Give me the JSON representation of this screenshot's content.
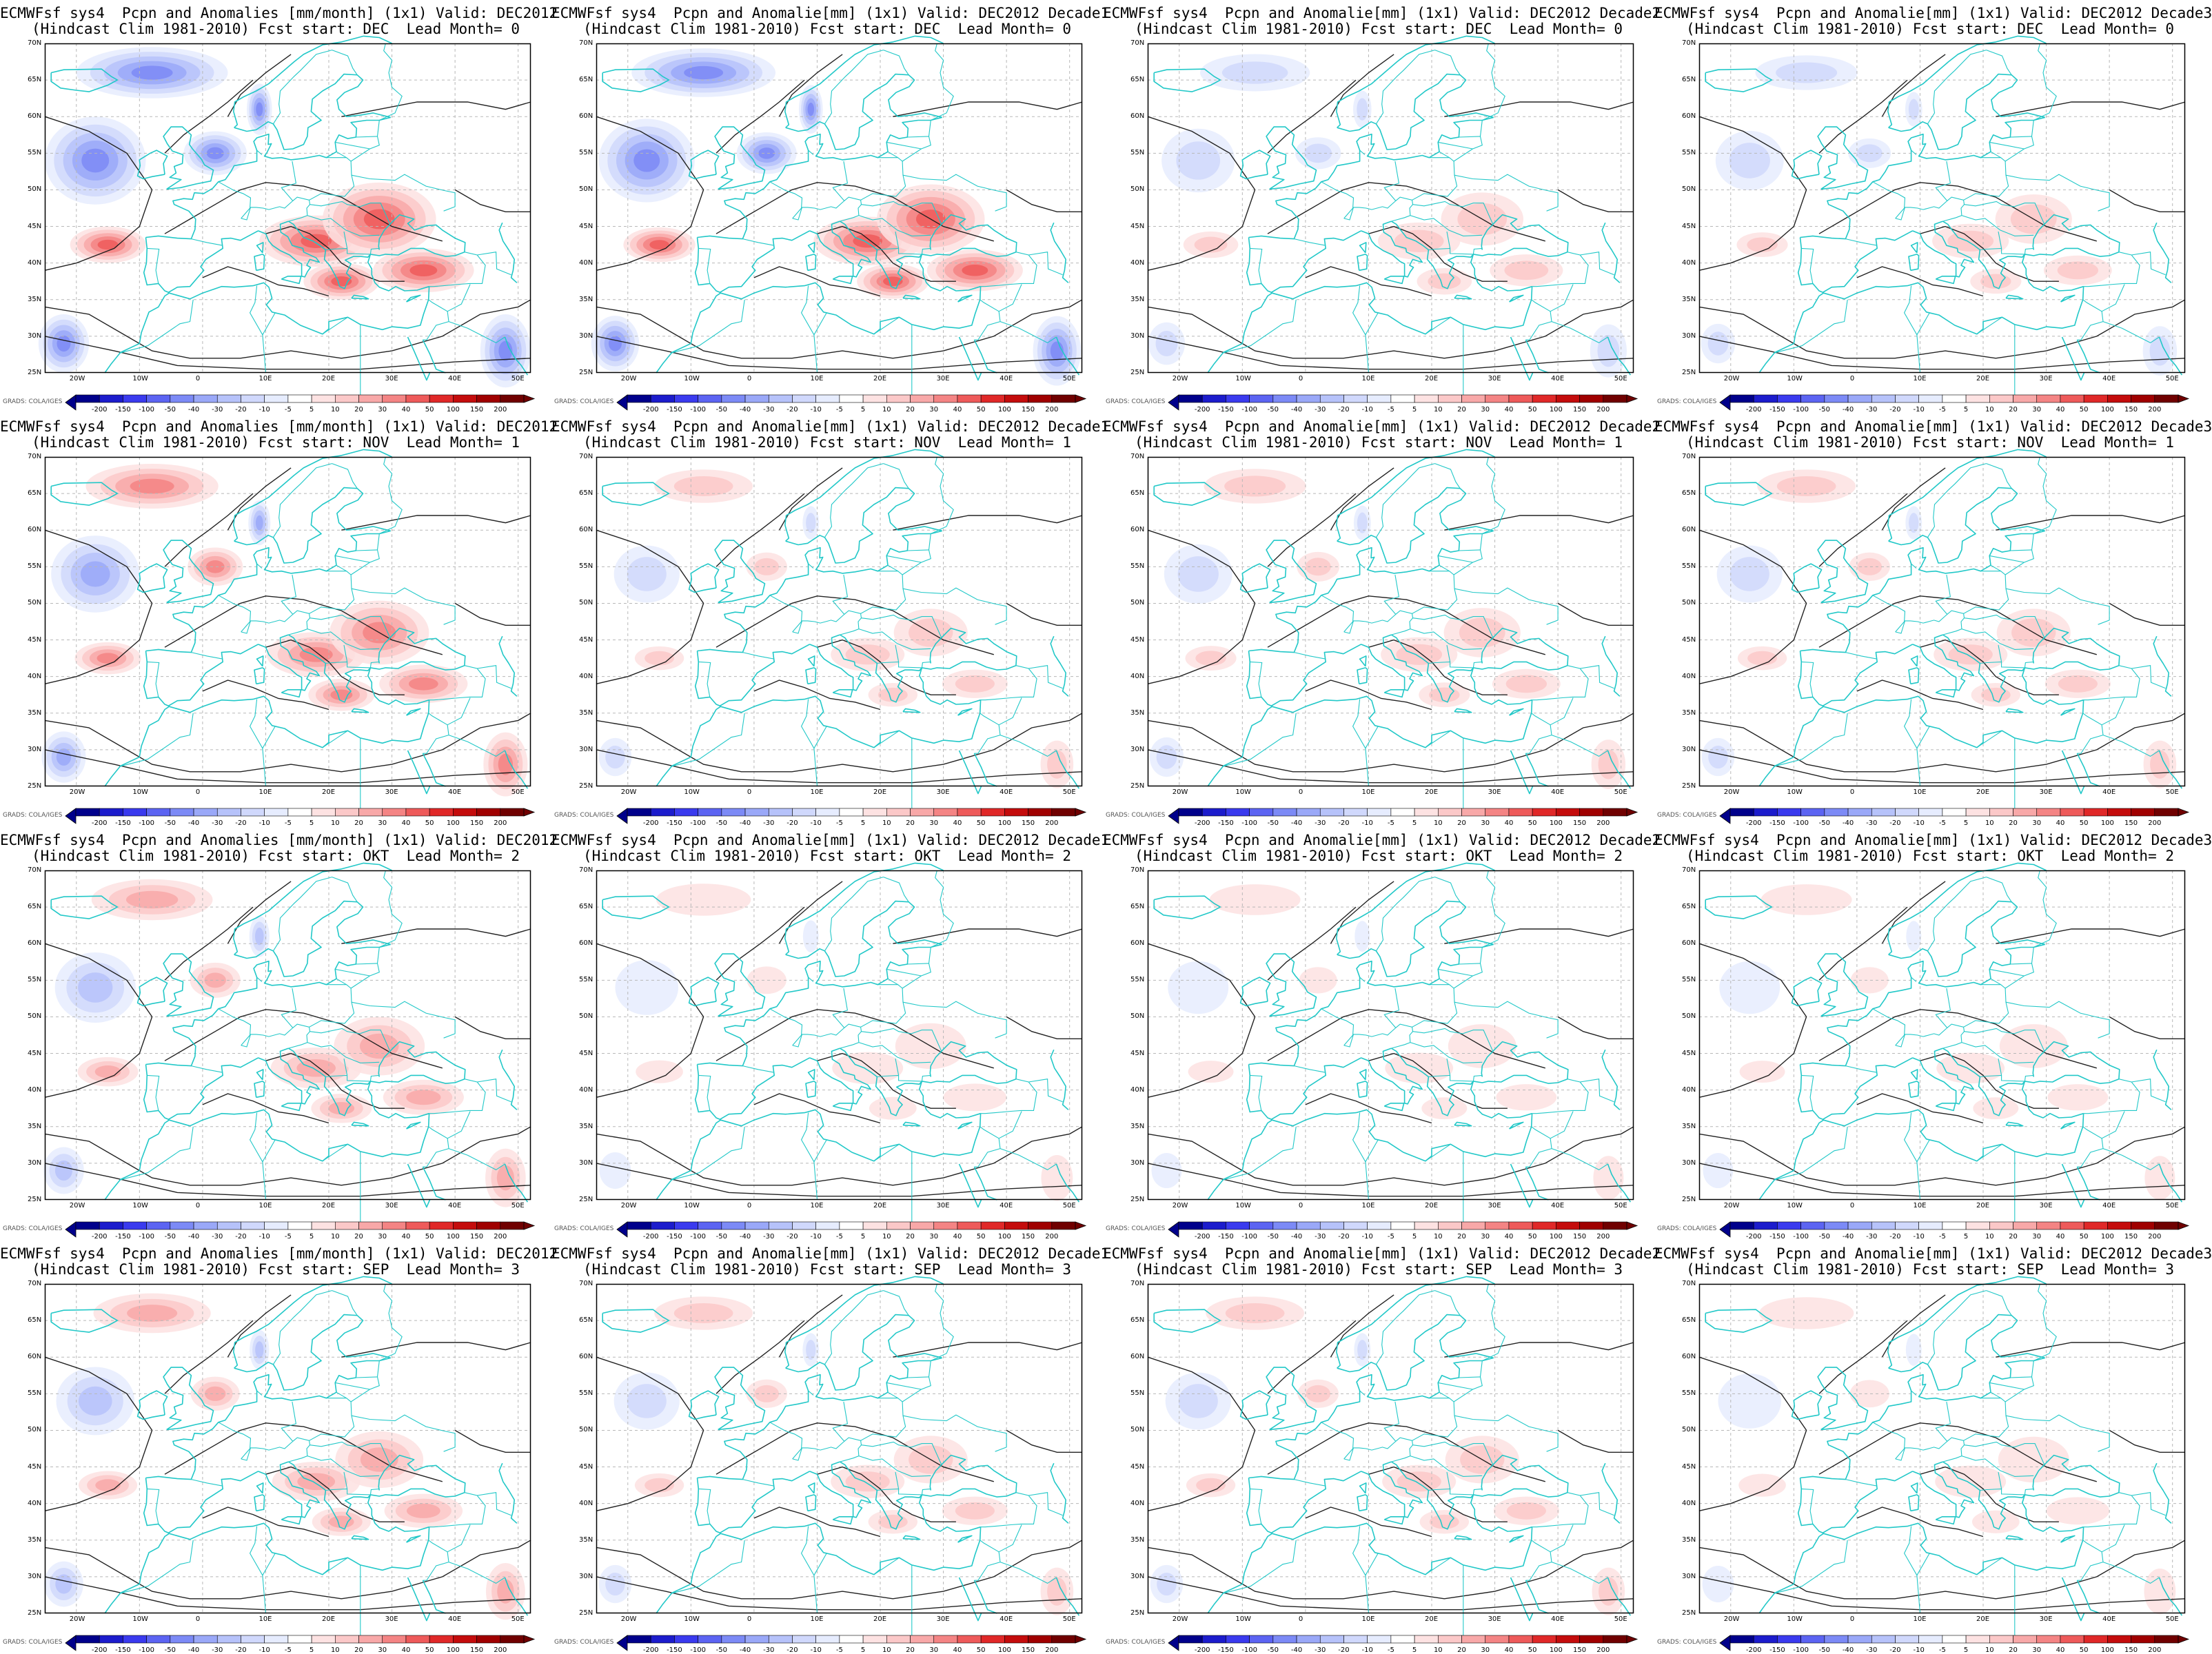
{
  "map": {
    "lon_range": [
      -25,
      52
    ],
    "lat_range": [
      25,
      70
    ],
    "lat_ticks": [
      "70N",
      "65N",
      "60N",
      "55N",
      "50N",
      "45N",
      "40N",
      "35N",
      "30N",
      "25N"
    ],
    "lon_ticks": [
      "20W",
      "10W",
      "0",
      "10E",
      "20E",
      "30E",
      "40E",
      "50E"
    ],
    "colorbar_ticks": [
      "-200",
      "-150",
      "-100",
      "-50",
      "-40",
      "-30",
      "-20",
      "-10",
      "-5",
      "5",
      "10",
      "20",
      "30",
      "40",
      "50",
      "100",
      "150",
      "200"
    ],
    "colorbar_colors": [
      "#00008b",
      "#1c1ccc",
      "#3a3aee",
      "#5c64f2",
      "#7c8af6",
      "#9aa8f8",
      "#b6c2fa",
      "#d0d8fc",
      "#e6ecfe",
      "#ffffff",
      "#fde2e2",
      "#fbc8c8",
      "#f8a8a8",
      "#f48484",
      "#ee5a5a",
      "#e02828",
      "#c40c0c",
      "#a00000",
      "#700000"
    ],
    "credit": "GRADS: COLA/IGES",
    "coast_color": "#22c8c8"
  },
  "rows": [
    {
      "start": "DEC",
      "lead": "0",
      "panels": [
        {
          "title1": "ECMWFsf sys4  Pcpn and Anomalies [mm/month] (1x1) Valid: DEC2012",
          "title2": "(Hindcast Clim 1981-2010) Fcst start: DEC  Lead Month= 0",
          "intensity": 1.0,
          "sign": -1
        },
        {
          "title1": "ECMWFsf sys4  Pcpn and Anomalie[mm] (1x1) Valid: DEC2012 Decade1",
          "title2": "(Hindcast Clim 1981-2010) Fcst start: DEC  Lead Month= 0",
          "intensity": 0.9,
          "sign": -1
        },
        {
          "title1": "ECMWFsf sys4  Pcpn and Anomalie[mm] (1x1) Valid: DEC2012 Decade2",
          "title2": "(Hindcast Clim 1981-2010) Fcst start: DEC  Lead Month= 0",
          "intensity": 0.45,
          "sign": -1
        },
        {
          "title1": "ECMWFsf sys4  Pcpn and Anomalie[mm] (1x1) Valid: DEC2012 Decade3",
          "title2": "(Hindcast Clim 1981-2010) Fcst start: DEC  Lead Month= 0",
          "intensity": 0.35,
          "sign": -1
        }
      ]
    },
    {
      "start": "NOV",
      "lead": "1",
      "panels": [
        {
          "title1": "ECMWFsf sys4  Pcpn and Anomalies [mm/month] (1x1) Valid: DEC2012",
          "title2": "(Hindcast Clim 1981-2010) Fcst start: NOV  Lead Month= 1",
          "intensity": 0.75,
          "sign": 1
        },
        {
          "title1": "ECMWFsf sys4  Pcpn and Anomalie[mm] (1x1) Valid: DEC2012 Decade1",
          "title2": "(Hindcast Clim 1981-2010) Fcst start: NOV  Lead Month= 1",
          "intensity": 0.3,
          "sign": 1
        },
        {
          "title1": "ECMWFsf sys4  Pcpn and Anomalie[mm] (1x1) Valid: DEC2012 Decade2",
          "title2": "(Hindcast Clim 1981-2010) Fcst start: NOV  Lead Month= 1",
          "intensity": 0.35,
          "sign": 1
        },
        {
          "title1": "ECMWFsf sys4  Pcpn and Anomalie[mm] (1x1) Valid: DEC2012 Decade3",
          "title2": "(Hindcast Clim 1981-2010) Fcst start: NOV  Lead Month= 1",
          "intensity": 0.3,
          "sign": 1
        }
      ]
    },
    {
      "start": "OKT",
      "lead": "2",
      "panels": [
        {
          "title1": "ECMWFsf sys4  Pcpn and Anomalies [mm/month] (1x1) Valid: DEC2012",
          "title2": "(Hindcast Clim 1981-2010) Fcst start: OKT  Lead Month= 2",
          "intensity": 0.6,
          "sign": 1
        },
        {
          "title1": "ECMWFsf sys4  Pcpn and Anomalie[mm] (1x1) Valid: DEC2012 Decade1",
          "title2": "(Hindcast Clim 1981-2010) Fcst start: OKT  Lead Month= 2",
          "intensity": 0.25,
          "sign": 1
        },
        {
          "title1": "ECMWFsf sys4  Pcpn and Anomalie[mm] (1x1) Valid: DEC2012 Decade2",
          "title2": "(Hindcast Clim 1981-2010) Fcst start: OKT  Lead Month= 2",
          "intensity": 0.2,
          "sign": 1
        },
        {
          "title1": "ECMWFsf sys4  Pcpn and Anomalie[mm] (1x1) Valid: DEC2012 Decade3",
          "title2": "(Hindcast Clim 1981-2010) Fcst start: OKT  Lead Month= 2",
          "intensity": 0.2,
          "sign": 1
        }
      ]
    },
    {
      "start": "SEP",
      "lead": "3",
      "panels": [
        {
          "title1": "ECMWFsf sys4  Pcpn and Anomalies [mm/month] (1x1) Valid: DEC2012",
          "title2": "(Hindcast Clim 1981-2010) Fcst start: SEP  Lead Month= 3",
          "intensity": 0.55,
          "sign": 1
        },
        {
          "title1": "ECMWFsf sys4  Pcpn and Anomalie[mm] (1x1) Valid: DEC2012 Decade1",
          "title2": "(Hindcast Clim 1981-2010) Fcst start: SEP  Lead Month= 3",
          "intensity": 0.3,
          "sign": 1
        },
        {
          "title1": "ECMWFsf sys4  Pcpn and Anomalie[mm] (1x1) Valid: DEC2012 Decade2",
          "title2": "(Hindcast Clim 1981-2010) Fcst start: SEP  Lead Month= 3",
          "intensity": 0.3,
          "sign": 1
        },
        {
          "title1": "ECMWFsf sys4  Pcpn and Anomalie[mm] (1x1) Valid: DEC2012 Decade3",
          "title2": "(Hindcast Clim 1981-2010) Fcst start: SEP  Lead Month= 3",
          "intensity": 0.25,
          "sign": 1
        }
      ]
    }
  ]
}
